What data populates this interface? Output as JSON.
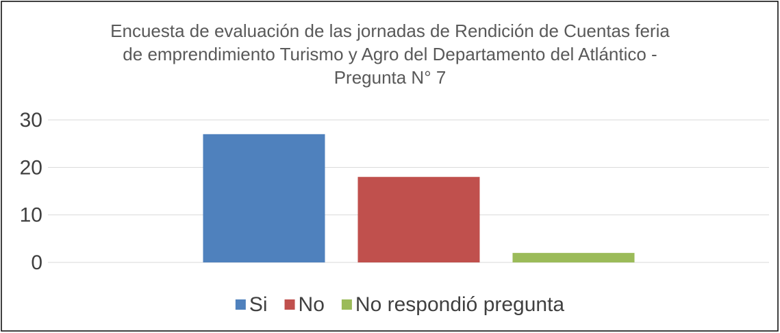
{
  "chart_data": {
    "type": "bar",
    "title": "Encuesta de evaluación de las jornadas de Rendición de Cuentas feria de emprendimiento Turismo y Agro del Departamento del Atlántico - Pregunta N° 7",
    "categories": [
      null
    ],
    "series": [
      {
        "name": "Si",
        "color": "#4f81bd",
        "values": [
          27
        ]
      },
      {
        "name": "No",
        "color": "#c0504d",
        "values": [
          18
        ]
      },
      {
        "name": "No respondió pregunta",
        "color": "#9bbb59",
        "values": [
          2
        ]
      }
    ],
    "ylim": [
      0,
      30
    ],
    "yticks": [
      0,
      10,
      20,
      30
    ],
    "grid": true,
    "legend": "bottom"
  }
}
